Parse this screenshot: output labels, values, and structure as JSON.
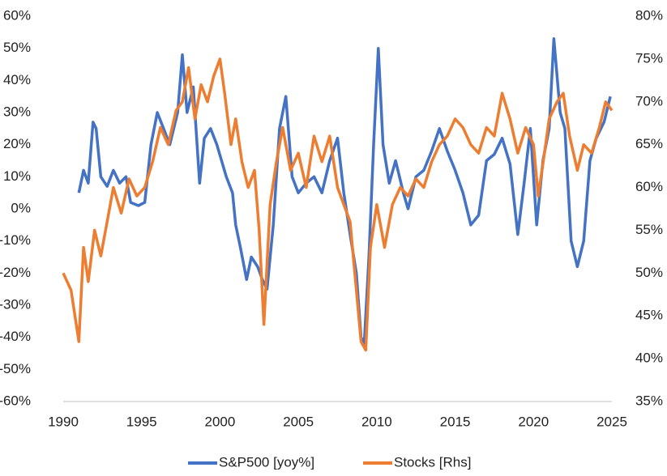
{
  "chart_data": {
    "type": "line",
    "xlim": [
      1990,
      2025
    ],
    "xticks": [
      1990,
      1995,
      2000,
      2005,
      2010,
      2015,
      2020,
      2025
    ],
    "ylim": [
      -60,
      60
    ],
    "yticks": [
      {
        "value": -60,
        "label": "-60%"
      },
      {
        "value": -50,
        "label": "-50%"
      },
      {
        "value": -40,
        "label": "-40%"
      },
      {
        "value": -30,
        "label": "-30%"
      },
      {
        "value": -20,
        "label": "-20%"
      },
      {
        "value": -10,
        "label": "-10%"
      },
      {
        "value": 0,
        "label": "0%"
      },
      {
        "value": 10,
        "label": "10%"
      },
      {
        "value": 20,
        "label": "20%"
      },
      {
        "value": 30,
        "label": "30%"
      },
      {
        "value": 40,
        "label": "40%"
      },
      {
        "value": 50,
        "label": "50%"
      },
      {
        "value": 60,
        "label": "60%"
      }
    ],
    "y2lim": [
      35,
      80
    ],
    "y2ticks": [
      {
        "value": 35,
        "label": "35%"
      },
      {
        "value": 40,
        "label": "40%"
      },
      {
        "value": 45,
        "label": "45%"
      },
      {
        "value": 50,
        "label": "50%"
      },
      {
        "value": 55,
        "label": "55%"
      },
      {
        "value": 60,
        "label": "60%"
      },
      {
        "value": 65,
        "label": "65%"
      },
      {
        "value": 70,
        "label": "70%"
      },
      {
        "value": 75,
        "label": "75%"
      },
      {
        "value": 80,
        "label": "80%"
      }
    ],
    "legend": "bottom",
    "series": [
      {
        "name": "S&P500 [yoy%]",
        "color": "#4472c4",
        "axis": "y",
        "x": [
          1991.0,
          1991.3,
          1991.6,
          1991.9,
          1992.1,
          1992.4,
          1992.8,
          1993.2,
          1993.6,
          1994.0,
          1994.3,
          1994.8,
          1995.2,
          1995.6,
          1996.0,
          1996.4,
          1996.8,
          1997.3,
          1997.6,
          1997.9,
          1998.3,
          1998.7,
          1999.0,
          1999.4,
          1999.8,
          2000.1,
          2000.4,
          2000.8,
          2001.0,
          2001.3,
          2001.7,
          2002.0,
          2002.4,
          2002.7,
          2003.0,
          2003.4,
          2003.8,
          2004.2,
          2004.6,
          2005.0,
          2005.5,
          2006.0,
          2006.5,
          2007.0,
          2007.5,
          2007.9,
          2008.3,
          2008.7,
          2009.0,
          2009.2,
          2009.5,
          2009.8,
          2010.1,
          2010.4,
          2010.8,
          2011.2,
          2011.7,
          2012.0,
          2012.5,
          2013.0,
          2013.5,
          2014.0,
          2014.5,
          2015.0,
          2015.5,
          2016.0,
          2016.5,
          2017.0,
          2017.5,
          2018.0,
          2018.5,
          2019.0,
          2019.4,
          2019.8,
          2020.2,
          2020.6,
          2021.0,
          2021.3,
          2021.7,
          2022.0,
          2022.4,
          2022.8,
          2023.2,
          2023.6,
          2024.0,
          2024.5,
          2024.9
        ],
        "values": [
          5,
          12,
          8,
          27,
          25,
          10,
          7,
          12,
          8,
          10,
          2,
          1,
          2,
          20,
          30,
          25,
          20,
          30,
          48,
          30,
          38,
          8,
          22,
          25,
          20,
          15,
          10,
          5,
          -5,
          -12,
          -22,
          -15,
          -18,
          -22,
          -25,
          -5,
          25,
          35,
          10,
          5,
          8,
          10,
          5,
          15,
          22,
          5,
          -8,
          -20,
          -40,
          -42,
          -15,
          20,
          50,
          20,
          8,
          15,
          5,
          0,
          10,
          12,
          18,
          25,
          18,
          12,
          5,
          -5,
          -2,
          15,
          17,
          22,
          14,
          -8,
          8,
          25,
          -5,
          15,
          25,
          53,
          30,
          25,
          -10,
          -18,
          -10,
          15,
          22,
          27,
          35
        ]
      },
      {
        "name": "Stocks [Rhs]",
        "color": "#ed7d31",
        "axis": "y2",
        "x": [
          1990.0,
          1990.5,
          1991.0,
          1991.3,
          1991.6,
          1992.0,
          1992.4,
          1992.8,
          1993.2,
          1993.7,
          1994.2,
          1994.7,
          1995.2,
          1995.7,
          1996.2,
          1996.7,
          1997.2,
          1997.6,
          1998.0,
          1998.4,
          1998.8,
          1999.2,
          1999.6,
          2000.0,
          2000.3,
          2000.7,
          2001.0,
          2001.4,
          2001.8,
          2002.2,
          2002.5,
          2002.8,
          2003.2,
          2003.6,
          2004.0,
          2004.5,
          2005.0,
          2005.5,
          2006.0,
          2006.5,
          2007.0,
          2007.5,
          2007.9,
          2008.3,
          2008.7,
          2009.0,
          2009.3,
          2009.6,
          2010.0,
          2010.5,
          2011.0,
          2011.5,
          2012.0,
          2012.5,
          2013.0,
          2013.5,
          2014.0,
          2014.5,
          2015.0,
          2015.5,
          2016.0,
          2016.5,
          2017.0,
          2017.5,
          2018.0,
          2018.5,
          2019.0,
          2019.5,
          2020.0,
          2020.3,
          2020.7,
          2021.0,
          2021.5,
          2021.9,
          2022.3,
          2022.8,
          2023.2,
          2023.7,
          2024.2,
          2024.6,
          2025.0
        ],
        "values": [
          50,
          48,
          42,
          53,
          49,
          55,
          52,
          56,
          60,
          57,
          61,
          59,
          60,
          63,
          67,
          65,
          69,
          70,
          74,
          68,
          72,
          70,
          73,
          75,
          71,
          65,
          68,
          63,
          60,
          62,
          55,
          44,
          58,
          63,
          67,
          62,
          64,
          60,
          66,
          63,
          66,
          60,
          58,
          56,
          48,
          42,
          41,
          53,
          58,
          53,
          58,
          60,
          59,
          61,
          60,
          63,
          65,
          66,
          68,
          67,
          65,
          64,
          67,
          66,
          71,
          68,
          64,
          67,
          65,
          59,
          64,
          68,
          70,
          71,
          66,
          62,
          65,
          64,
          67,
          70,
          69
        ]
      }
    ]
  }
}
